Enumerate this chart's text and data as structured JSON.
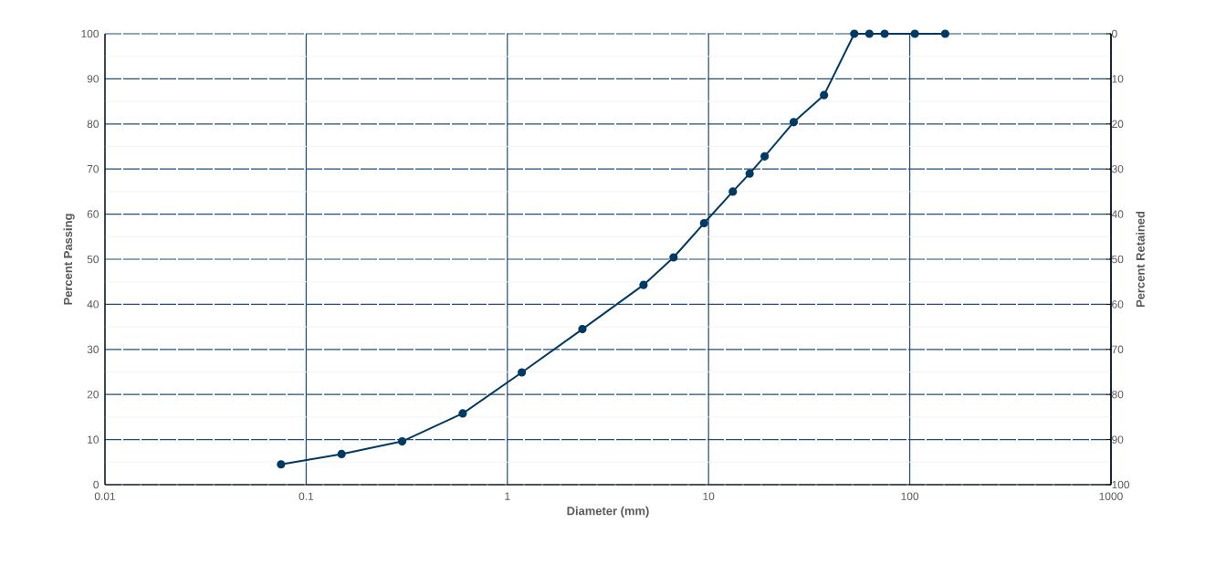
{
  "chart_data": {
    "type": "line",
    "xlabel": "Diameter (mm)",
    "ylabel": "Percent Passing",
    "y2label": "Percent Retained",
    "x": [
      0.075,
      0.15,
      0.3,
      0.6,
      1.18,
      2.36,
      4.75,
      6.7,
      9.5,
      13.2,
      16,
      19,
      26.5,
      37.5,
      53,
      63,
      75,
      106,
      150
    ],
    "series": [
      {
        "color": "#003a63",
        "values": [
          4.5,
          6.8,
          9.6,
          15.8,
          24.9,
          34.5,
          44.3,
          50.4,
          58,
          65,
          69,
          72.8,
          80.4,
          86.4,
          100,
          100,
          100,
          100,
          100
        ]
      }
    ],
    "xlim": [
      0.01,
      1000
    ],
    "xticks": [
      0.01,
      0.1,
      1,
      10,
      100,
      1000
    ],
    "log": "x",
    "ylim": [
      0,
      100
    ],
    "yticks": [
      0,
      10,
      20,
      30,
      40,
      50,
      60,
      70,
      80,
      90,
      100
    ],
    "y2lim": [
      100,
      0
    ],
    "y2ticks": [
      0,
      10,
      20,
      30,
      40,
      50,
      60,
      70,
      80,
      90,
      100
    ],
    "grid": true,
    "marker": "circle",
    "line_style": "solid"
  }
}
